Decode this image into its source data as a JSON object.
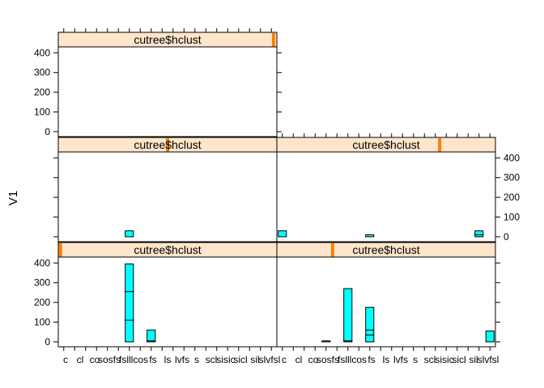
{
  "chart_data": {
    "type": "bar",
    "ylabel": "V1",
    "ylim": [
      -25,
      430
    ],
    "yticks": [
      0,
      100,
      200,
      300,
      400
    ],
    "categories": [
      "c",
      "cl",
      "co",
      "cos",
      "ofs",
      "fs",
      "fsl",
      "l",
      "lcos",
      "lfs",
      "ls",
      "lvfs",
      "s",
      "scl",
      "si",
      "sic",
      "sicl",
      "sil",
      "sl",
      "vfsl"
    ],
    "xtick_labels": [
      "c",
      "cl",
      "co",
      "sosfs",
      "fsl",
      "llcos",
      "fs",
      "ls",
      "lvfs",
      "s",
      "scl",
      "sisic",
      "sicl",
      "sil",
      "slvfsl"
    ],
    "bar_color": "#00ffff",
    "strip_color": "#ffe5cc",
    "strip_marker_color": "#ff7f00",
    "panels": [
      {
        "strip_label": "cutree$hclust",
        "strip_level": 0.985,
        "stacks": []
      },
      {
        "strip_label": "cutree$hclust",
        "strip_level": 0.5,
        "stacks": [
          {
            "category": "fsl",
            "segments": [
              30
            ]
          }
        ]
      },
      {
        "strip_label": "cutree$hclust",
        "strip_level": 0.745,
        "stacks": [
          {
            "category": "c",
            "segments": [
              30
            ]
          },
          {
            "category": "lcos",
            "segments": [
              10
            ]
          },
          {
            "category": "sl",
            "segments": [
              10,
              20
            ]
          }
        ]
      },
      {
        "strip_label": "cutree$hclust",
        "strip_level": 0.01,
        "stacks": [
          {
            "category": "fsl",
            "segments": [
              110,
              145,
              140
            ]
          },
          {
            "category": "lcos",
            "segments": [
              5,
              55
            ]
          }
        ]
      },
      {
        "strip_label": "cutree$hclust",
        "strip_level": 0.255,
        "stacks": [
          {
            "category": "ofs",
            "segments": [
              5
            ]
          },
          {
            "category": "fsl",
            "segments": [
              5,
              265
            ]
          },
          {
            "category": "lcos",
            "segments": [
              35,
              25,
              115
            ]
          },
          {
            "category": "vfsl",
            "segments": [
              55
            ]
          }
        ]
      }
    ]
  }
}
